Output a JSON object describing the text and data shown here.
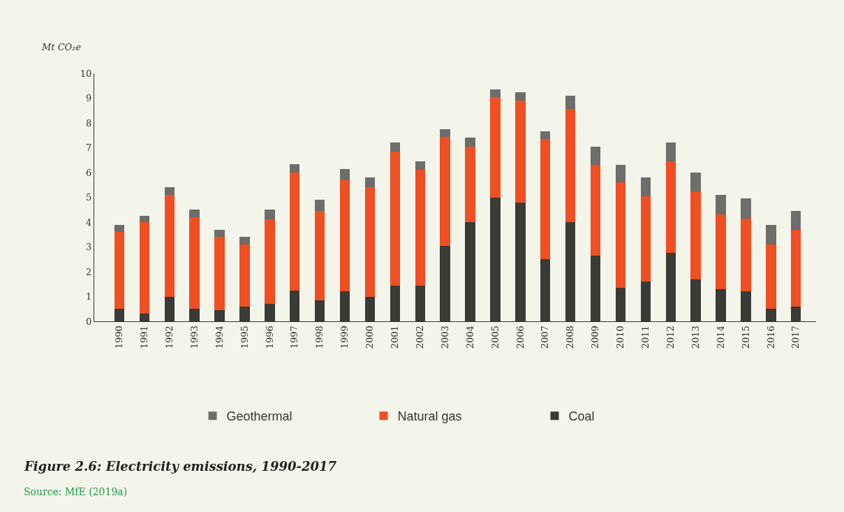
{
  "chart_data": {
    "type": "bar",
    "stacked": true,
    "title": "Figure 2.6: Electricity emissions, 1990-2017",
    "ylabel": "Mt CO₂e",
    "annotations": [
      "Source: MfE (2019a)"
    ],
    "categories": [
      "1990",
      "1991",
      "1992",
      "1993",
      "1994",
      "1995",
      "1996",
      "1997",
      "1998",
      "1999",
      "2000",
      "2001",
      "2002",
      "2003",
      "2004",
      "2005",
      "2006",
      "2007",
      "2008",
      "2009",
      "2010",
      "2011",
      "2012",
      "2013",
      "2014",
      "2015",
      "2016",
      "2017"
    ],
    "series": [
      {
        "name": "Coal",
        "color": "#3a3a36",
        "values": [
          0.5,
          0.3,
          1.0,
          0.5,
          0.45,
          0.6,
          0.7,
          1.25,
          0.85,
          1.2,
          1.0,
          1.45,
          1.45,
          3.05,
          4.0,
          5.0,
          4.8,
          2.5,
          4.0,
          2.65,
          1.35,
          1.6,
          2.75,
          1.7,
          1.3,
          1.2,
          0.5,
          0.6
        ]
      },
      {
        "name": "Natural gas",
        "color": "#f04e23",
        "values": [
          3.1,
          3.7,
          4.1,
          3.7,
          2.95,
          2.5,
          3.4,
          4.75,
          3.6,
          4.5,
          4.4,
          5.4,
          4.65,
          4.4,
          3.05,
          4.05,
          4.1,
          4.85,
          4.55,
          3.65,
          4.25,
          3.45,
          3.7,
          3.55,
          3.0,
          2.95,
          2.6,
          3.1
        ]
      },
      {
        "name": "Geothermal",
        "color": "#6d6d6b",
        "values": [
          0.3,
          0.25,
          0.3,
          0.3,
          0.3,
          0.3,
          0.4,
          0.35,
          0.45,
          0.45,
          0.4,
          0.35,
          0.35,
          0.3,
          0.35,
          0.3,
          0.35,
          0.3,
          0.55,
          0.75,
          0.7,
          0.75,
          0.75,
          0.75,
          0.8,
          0.8,
          0.8,
          0.75
        ]
      }
    ],
    "ylim": [
      0,
      10
    ],
    "yticks": [
      0,
      1,
      2,
      3,
      4,
      5,
      6,
      7,
      8,
      9,
      10
    ],
    "grid": false,
    "legend": "bottom"
  }
}
